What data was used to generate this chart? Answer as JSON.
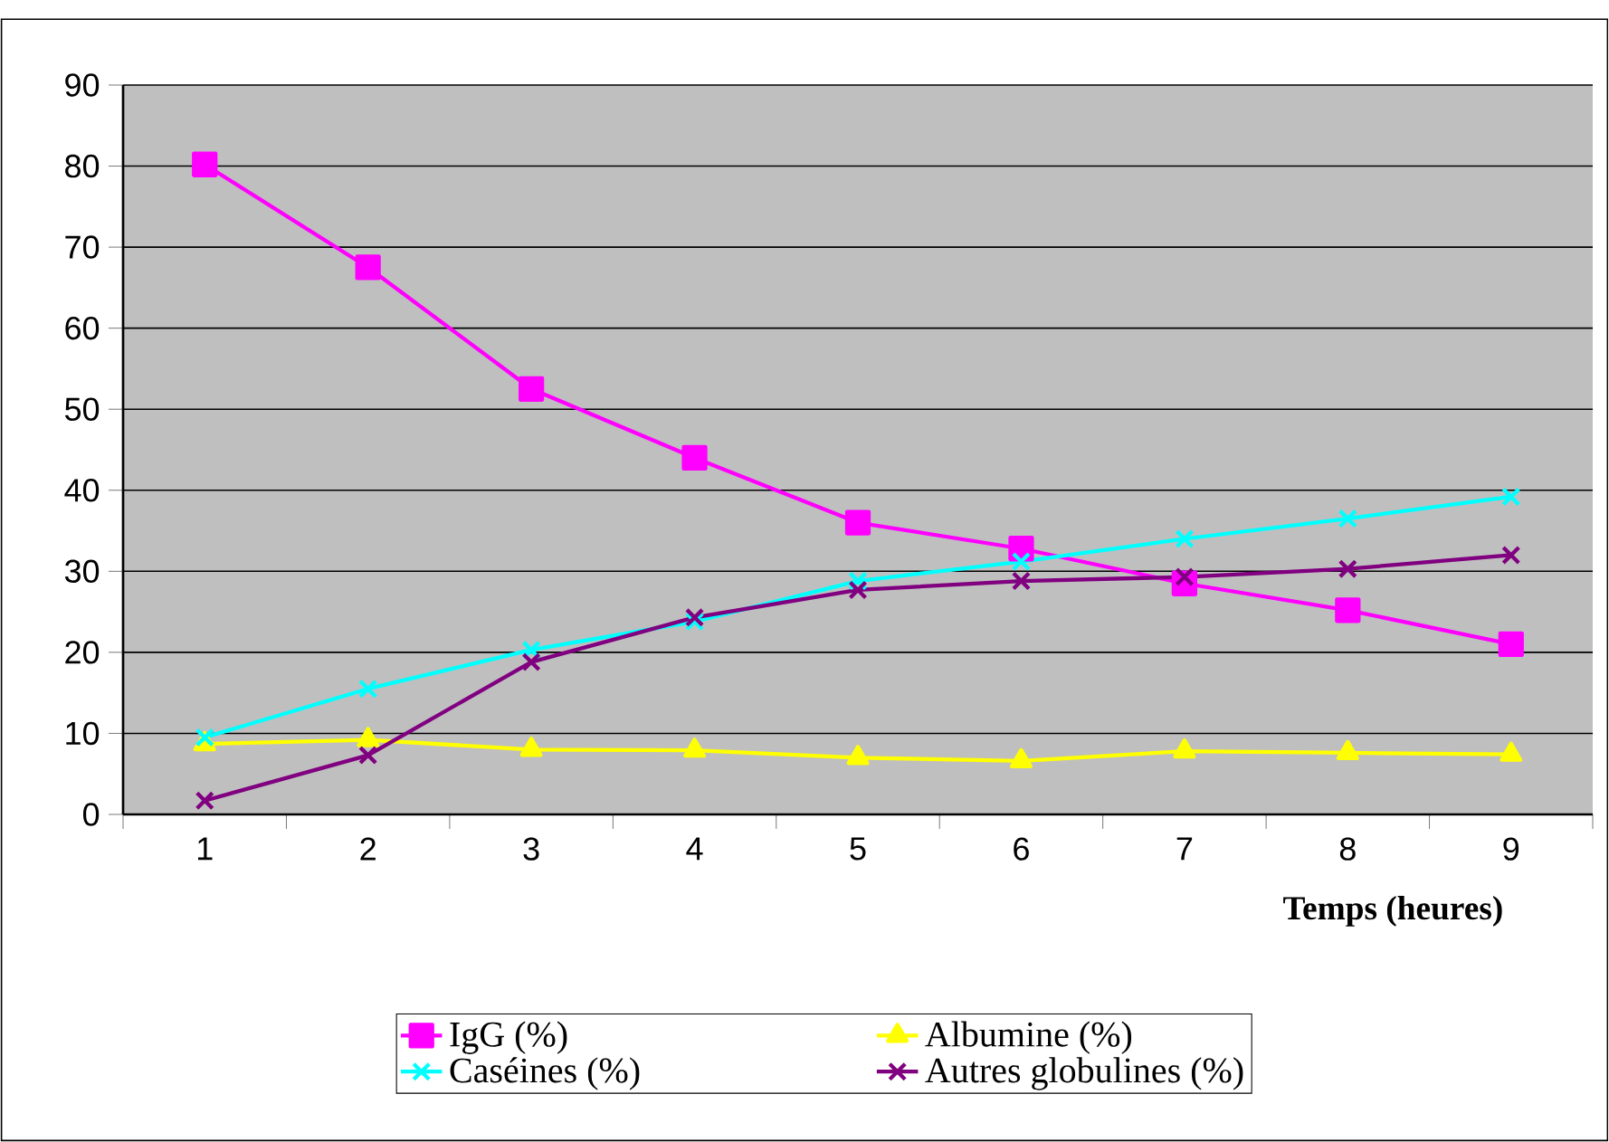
{
  "chart_data": {
    "type": "line",
    "xlabel": "Temps (heures)",
    "categories": [
      "1",
      "2",
      "3",
      "4",
      "5",
      "6",
      "7",
      "8",
      "9"
    ],
    "series": [
      {
        "name": "IgG (%)",
        "color": "#ff00ff",
        "marker": "square",
        "values": [
          80.2,
          67.5,
          52.5,
          44,
          36,
          32.8,
          28.5,
          25.2,
          21
        ]
      },
      {
        "name": "Albumine (%)",
        "color": "#ffff00",
        "marker": "triangle",
        "values": [
          8.7,
          9.2,
          8.0,
          7.9,
          7.0,
          6.6,
          7.8,
          7.6,
          7.4
        ]
      },
      {
        "name": "Caséines (%)",
        "color": "#00ffff",
        "marker": "cross",
        "values": [
          9.5,
          15.5,
          20.3,
          23.8,
          28.8,
          31.2,
          34,
          36.5,
          39.2
        ]
      },
      {
        "name": "Autres globulines (%)",
        "color": "#800080",
        "marker": "cross",
        "values": [
          1.7,
          7.3,
          18.8,
          24.3,
          27.7,
          28.8,
          29.3,
          30.3,
          32
        ]
      }
    ],
    "ylim": [
      0,
      90
    ],
    "yticks": [
      0,
      10,
      20,
      30,
      40,
      50,
      60,
      70,
      80,
      90
    ],
    "grid": "y",
    "legend": "bottom"
  }
}
